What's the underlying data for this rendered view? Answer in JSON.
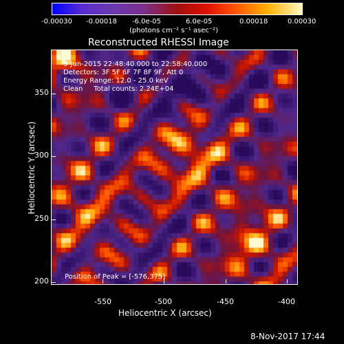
{
  "colorbar": {
    "ticks": [
      "-0.00030",
      "-0.00018",
      "-6.0e-05",
      "6.0e-05",
      "0.00018",
      "0.00030"
    ],
    "units": "(photons cm⁻² s⁻¹ asec⁻²)"
  },
  "title": "Reconstructed RHESSI Image",
  "info": {
    "time_range": "3-Jun-2015 22:48:40.000 to 22:58:40.000",
    "detectors": "Detectors: 3F 5F 6F 7F 8F 9F, Att 0",
    "energy": "Energy Range: 12.0 - 25.0 keV",
    "clean": "Clean     Total counts: 2.24E+04",
    "peak": "Position of Peak = [-576,375]"
  },
  "axes": {
    "xlabel": "Heliocentric X (arcsec)",
    "ylabel": "Heliocentric Y (arcsec)",
    "xticks": [
      "-550",
      "-500",
      "-450",
      "-400"
    ],
    "yticks": [
      "350",
      "300",
      "250",
      "200"
    ]
  },
  "footer": {
    "date": "8-Nov-2017 17:44"
  },
  "colors": {
    "background": "#000000",
    "axis": "#ffffff"
  }
}
